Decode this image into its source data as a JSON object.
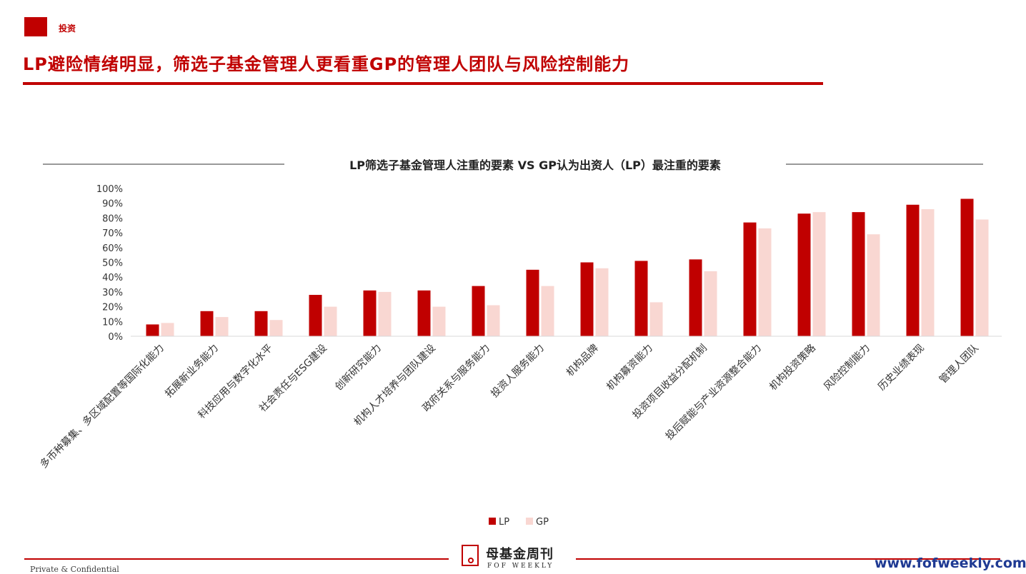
{
  "header": {
    "tag": "投资",
    "title": "LP避险情绪明显，筛选子基金管理人更看重GP的管理人团队与风险控制能力"
  },
  "footer": {
    "confidential": "Private & Confidential",
    "logo_cn": "母基金周刊",
    "logo_en": "FOF WEEKLY",
    "website": "www.fofweekly.com"
  },
  "colors": {
    "accent": "#c00000",
    "lp": "#c00000",
    "gp": "#f9d7d2"
  },
  "chart_data": {
    "type": "bar",
    "title": "LP筛选子基金管理人注重的要素 VS GP认为出资人（LP）最注重的要素",
    "categories": [
      "多币种募集、多区域配置等国际化能力",
      "拓展新业务能力",
      "科技应用与数字化水平",
      "社会责任与ESG建设",
      "创新研究能力",
      "机构人才培养与团队建设",
      "政府关系与服务能力",
      "投资人服务能力",
      "机构品牌",
      "机构募资能力",
      "投资项目收益分配机制",
      "投后赋能与产业资源整合能力",
      "机构投资策略",
      "风险控制能力",
      "历史业绩表现",
      "管理人团队"
    ],
    "series": [
      {
        "name": "LP",
        "values": [
          8,
          17,
          17,
          28,
          31,
          31,
          34,
          45,
          50,
          51,
          52,
          77,
          83,
          84,
          89,
          93
        ]
      },
      {
        "name": "GP",
        "values": [
          9,
          13,
          11,
          20,
          30,
          20,
          21,
          34,
          46,
          23,
          44,
          73,
          84,
          69,
          86,
          79
        ]
      }
    ],
    "yticks": [
      "0%",
      "10%",
      "20%",
      "30%",
      "40%",
      "50%",
      "60%",
      "70%",
      "80%",
      "90%",
      "100%"
    ],
    "ylim": [
      0,
      100
    ],
    "grid": false,
    "legend_position": "bottom"
  }
}
